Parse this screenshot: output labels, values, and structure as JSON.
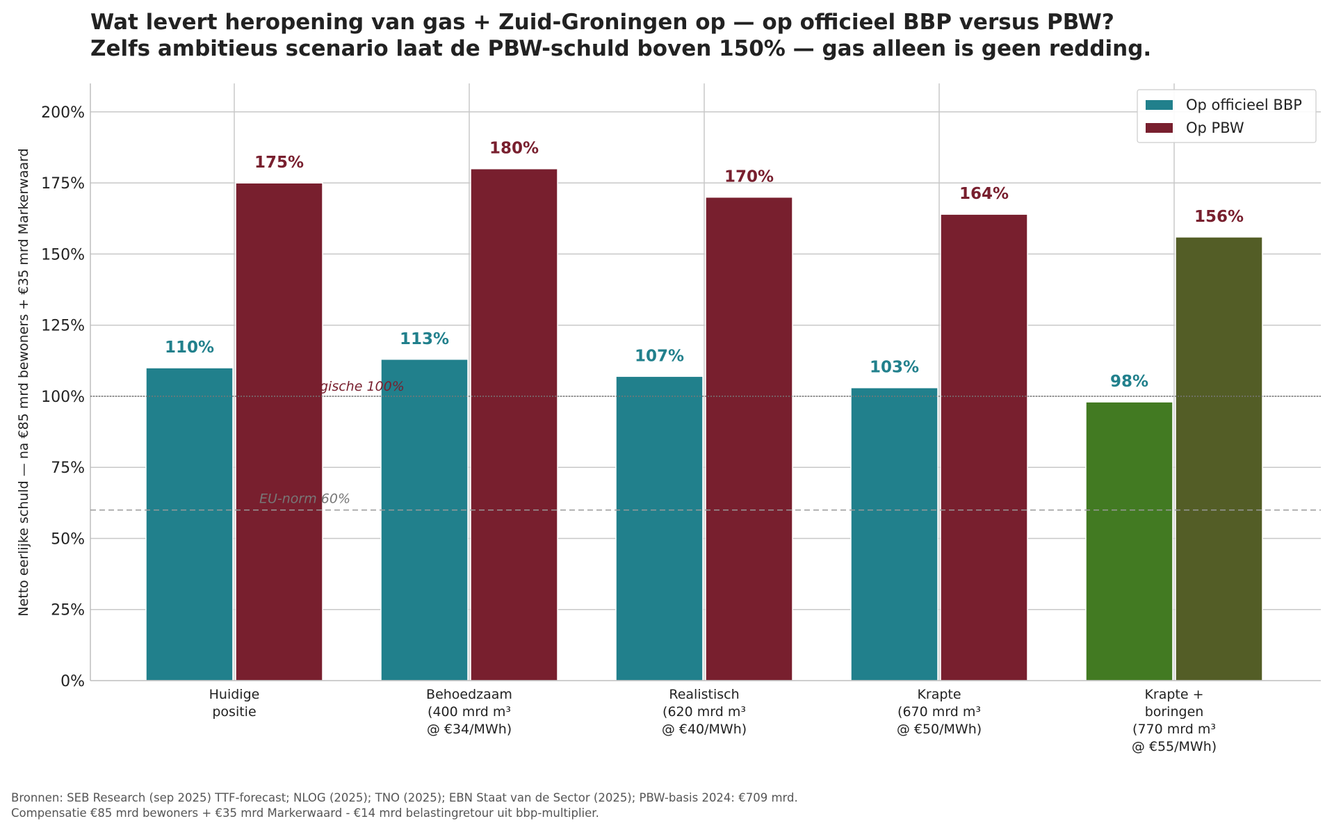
{
  "chart_data": {
    "type": "bar",
    "title_lines": [
      "Wat levert heropening van gas + Zuid-Groningen op — op officieel BBP versus PBW?",
      "Zelfs ambitieus scenario laat de PBW-schuld boven 150% — gas alleen is geen redding."
    ],
    "ylabel": "Netto eerlijke schuld — na €85 mrd bewoners + €35 mrd Markerwaard",
    "xlabel": "",
    "ylim": [
      0,
      210
    ],
    "yticks": [
      0,
      25,
      50,
      75,
      100,
      125,
      150,
      175,
      200
    ],
    "ytick_labels": [
      "0%",
      "25%",
      "50%",
      "75%",
      "100%",
      "125%",
      "150%",
      "175%",
      "200%"
    ],
    "categories": [
      [
        "Huidige",
        "positie"
      ],
      [
        "Behoedzaam",
        "(400 mrd m³",
        "@ €34/MWh)"
      ],
      [
        "Realistisch",
        "(620 mrd m³",
        "@ €40/MWh)"
      ],
      [
        "Krapte",
        "(670 mrd m³",
        "@ €50/MWh)"
      ],
      [
        "Krapte +",
        "boringen",
        "(770 mrd m³",
        "@ €55/MWh)"
      ]
    ],
    "series": [
      {
        "name": "Op officieel BBP",
        "values": [
          110,
          113,
          107,
          103,
          98
        ],
        "value_labels": [
          "110%",
          "113%",
          "107%",
          "103%",
          "98%"
        ],
        "color": "#21808c",
        "bar_colors": [
          "#21808c",
          "#21808c",
          "#21808c",
          "#21808c",
          "#427a22"
        ],
        "label_color": "#21808c"
      },
      {
        "name": "Op PBW",
        "values": [
          175,
          180,
          170,
          164,
          156
        ],
        "value_labels": [
          "175%",
          "180%",
          "170%",
          "164%",
          "156%"
        ],
        "color": "#781f2e",
        "bar_colors": [
          "#781f2e",
          "#781f2e",
          "#781f2e",
          "#781f2e",
          "#535d26"
        ],
        "label_color": "#781f2e"
      }
    ],
    "reference_lines": [
      {
        "value": 100,
        "label": "gische 100%",
        "style": "dotted",
        "color": "#777777",
        "label_color": "#781f2e"
      },
      {
        "value": 60,
        "label": "EU-norm 60%",
        "style": "dashed",
        "color": "#999999",
        "label_color": "#777777"
      }
    ],
    "grid": true,
    "legend_position": "top-right"
  },
  "source_lines": [
    "Bronnen: SEB Research (sep 2025) TTF-forecast; NLOG (2025); TNO (2025); EBN Staat van de Sector (2025); PBW-basis 2024: €709 mrd.",
    "Compensatie €85 mrd bewoners + €35 mrd Markerwaard - €14 mrd belastingretour uit bbp-multiplier."
  ]
}
